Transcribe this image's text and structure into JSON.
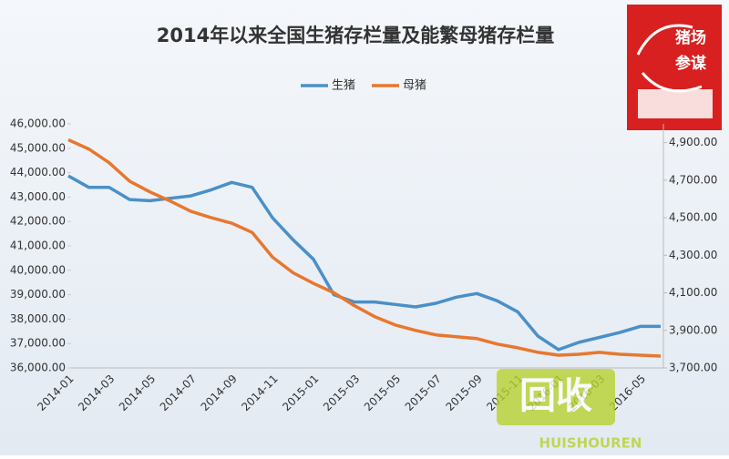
{
  "chart_data": {
    "type": "line",
    "title": "2014年以来全国生猪存栏量及能繁母猪存栏量",
    "categories": [
      "2014-01",
      null,
      "2014-03",
      null,
      "2014-05",
      null,
      "2014-07",
      null,
      "2014-09",
      null,
      "2014-11",
      null,
      "2015-01",
      null,
      "2015-03",
      null,
      "2015-05",
      null,
      "2015-07",
      null,
      "2015-09",
      null,
      "2015-11",
      null,
      "2016-01",
      null,
      "2016-03",
      null,
      "2016-05",
      null
    ],
    "series": [
      {
        "name": "生猪",
        "color": "#4a90c8",
        "values": [
          43870,
          43400,
          43400,
          42900,
          42850,
          42950,
          43050,
          43300,
          43600,
          43400,
          42150,
          41250,
          40450,
          39000,
          38700,
          38700,
          38600,
          38500,
          38650,
          38900,
          39050,
          38750,
          38300,
          37300,
          36750,
          37050,
          37250,
          37450,
          37700,
          37700
        ]
      },
      {
        "name": "母猪",
        "color": "#e8772e",
        "axis": "y2",
        "values": [
          4915,
          4866,
          4793,
          4695,
          4637,
          4588,
          4534,
          4500,
          4471,
          4422,
          4290,
          4207,
          4150,
          4100,
          4032,
          3973,
          3929,
          3900,
          3876,
          3866,
          3856,
          3827,
          3807,
          3783,
          3768,
          3773,
          3783,
          3773,
          3768,
          3763
        ]
      }
    ],
    "ylim": [
      36000,
      46000
    ],
    "yticks": [
      {
        "value": 36000,
        "label": "36,000.00"
      },
      {
        "value": 37000,
        "label": "37,000.00"
      },
      {
        "value": 38000,
        "label": "38,000.00"
      },
      {
        "value": 39000,
        "label": "39,000.00"
      },
      {
        "value": 40000,
        "label": "40,000.00"
      },
      {
        "value": 41000,
        "label": "41,000.00"
      },
      {
        "value": 42000,
        "label": "42,000.00"
      },
      {
        "value": 43000,
        "label": "43,000.00"
      },
      {
        "value": 44000,
        "label": "44,000.00"
      },
      {
        "value": 45000,
        "label": "45,000.00"
      },
      {
        "value": 46000,
        "label": "46,000.00"
      }
    ],
    "y2lim": [
      3700,
      5000
    ],
    "y2ticks": [
      {
        "value": 3700,
        "label": "3,700.00"
      },
      {
        "value": 3900,
        "label": "3,900.00"
      },
      {
        "value": 4100,
        "label": "4,100.00"
      },
      {
        "value": 4300,
        "label": "4,300.00"
      },
      {
        "value": 4500,
        "label": "4,500.00"
      },
      {
        "value": 4700,
        "label": "4,700.00"
      },
      {
        "value": 4900,
        "label": "4,900.00"
      }
    ],
    "grid": false
  },
  "logo": {
    "line1": "猪场",
    "line2": "参谋"
  },
  "watermark": {
    "text": "回收",
    "sub": "HUISHOUREN"
  }
}
